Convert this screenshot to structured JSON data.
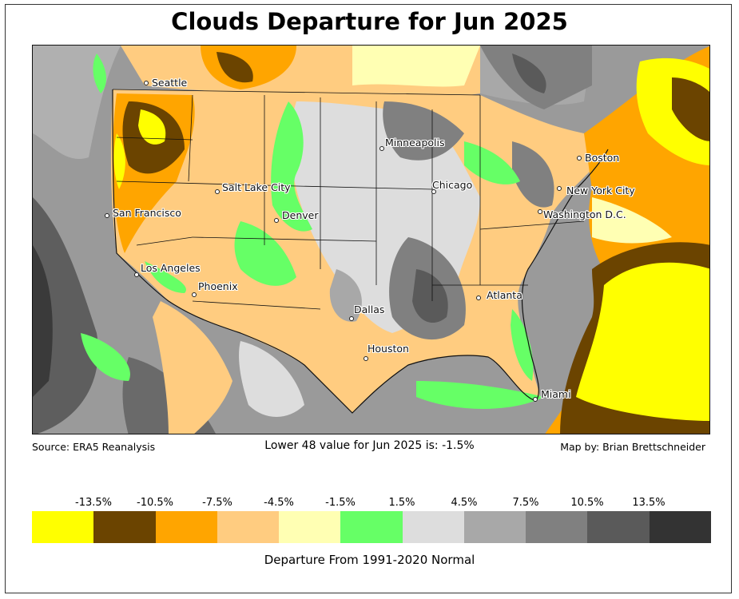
{
  "title": "Clouds Departure for Jun 2025",
  "footer": {
    "source": "Source: ERA5 Reanalysis",
    "summary": "Lower 48 value for Jun 2025 is: -1.5%",
    "credit": "Map by: Brian Brettschneider"
  },
  "cities": [
    {
      "name": "Seattle"
    },
    {
      "name": "Minneapolis"
    },
    {
      "name": "Boston"
    },
    {
      "name": "Salt Lake City"
    },
    {
      "name": "Chicago"
    },
    {
      "name": "New York City"
    },
    {
      "name": "San Francisco"
    },
    {
      "name": "Denver"
    },
    {
      "name": "Washington D.C."
    },
    {
      "name": "Los Angeles"
    },
    {
      "name": "Phoenix"
    },
    {
      "name": "Atlanta"
    },
    {
      "name": "Dallas"
    },
    {
      "name": "Houston"
    },
    {
      "name": "Miami"
    }
  ],
  "legend": {
    "title": "Departure From 1991-2020 Normal",
    "ticks": [
      "-13.5%",
      "-10.5%",
      "-7.5%",
      "-4.5%",
      "-1.5%",
      "1.5%",
      "4.5%",
      "7.5%",
      "10.5%",
      "13.5%"
    ],
    "colors": [
      "#ffff00",
      "#6b4400",
      "#ffa500",
      "#ffcc80",
      "#ffffb3",
      "#66ff66",
      "#dddddd",
      "#a8a8a8",
      "#808080",
      "#5a5a5a",
      "#333333"
    ]
  },
  "colors": {
    "ocean_base": "#9a9a9a",
    "border": "#111111"
  }
}
